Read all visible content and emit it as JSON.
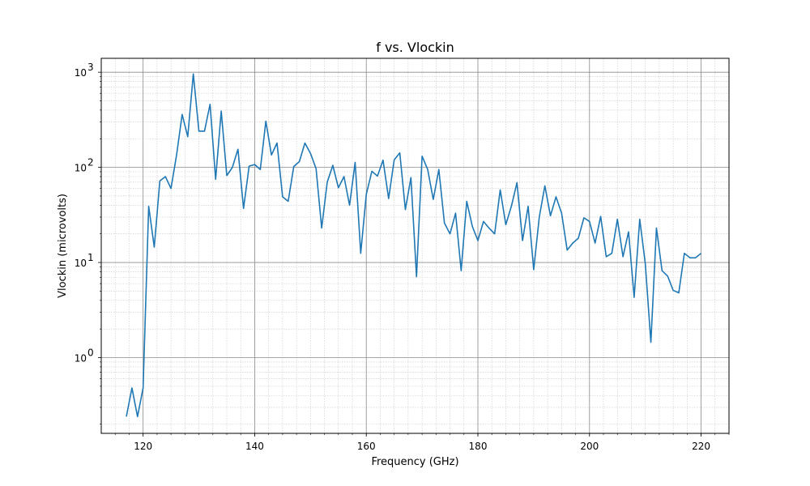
{
  "chart_data": {
    "type": "line",
    "title": "f vs. Vlockin",
    "xlabel": "Frequency (GHz)",
    "ylabel": "Vlockin (microvolts)",
    "yscale": "log",
    "xlim": [
      112.5,
      225
    ],
    "ylim": [
      0.16,
      1400
    ],
    "x_ticks": [
      120,
      140,
      160,
      180,
      200,
      220
    ],
    "x_tick_labels": [
      "120",
      "140",
      "160",
      "180",
      "200",
      "220"
    ],
    "y_ticks": [
      1,
      10,
      100,
      1000
    ],
    "y_tick_labels": [
      {
        "base": "10",
        "exp": "0"
      },
      {
        "base": "10",
        "exp": "1"
      },
      {
        "base": "10",
        "exp": "2"
      },
      {
        "base": "10",
        "exp": "3"
      }
    ],
    "grid": true,
    "legend": "none",
    "line_color": "#1f77b4",
    "series": [
      {
        "x": [
          117,
          118,
          119,
          120,
          121,
          122,
          123,
          124,
          125,
          126,
          127,
          128,
          129,
          130,
          131,
          132,
          133,
          134,
          135,
          136,
          137,
          138,
          139,
          140,
          141,
          142,
          143,
          144,
          145,
          146,
          147,
          148,
          149,
          150,
          151,
          152,
          153,
          154,
          155,
          156,
          157,
          158,
          159,
          160,
          161,
          162,
          163,
          164,
          165,
          166,
          167,
          168,
          169,
          170,
          171,
          172,
          173,
          174,
          175,
          176,
          177,
          178,
          179,
          180,
          181,
          182,
          183,
          184,
          185,
          186,
          187,
          188,
          189,
          190,
          191,
          192,
          193,
          194,
          195,
          196,
          197,
          198,
          199,
          200,
          201,
          202,
          203,
          204,
          205,
          206,
          207,
          208,
          209,
          210,
          211,
          212,
          213,
          214,
          215,
          216,
          217,
          218,
          219,
          220
        ],
        "y": [
          0.24,
          0.48,
          0.24,
          0.48,
          39,
          14.5,
          72,
          80,
          60,
          135,
          360,
          210,
          960,
          240,
          240,
          460,
          75,
          390,
          82,
          100,
          155,
          37,
          103,
          107,
          95,
          305,
          135,
          180,
          49,
          44,
          102,
          115,
          180,
          140,
          97,
          23,
          70,
          105,
          61,
          80,
          40,
          113,
          12.5,
          52,
          91,
          81,
          119,
          47,
          120,
          142,
          36,
          78,
          7.1,
          131,
          95,
          46,
          95,
          26,
          20,
          33,
          8.2,
          44,
          24,
          17,
          27,
          23,
          20,
          58,
          25,
          39,
          69,
          17,
          39,
          8.4,
          30,
          64,
          31,
          49,
          33,
          13.5,
          16,
          18,
          29.5,
          27,
          16,
          30.5,
          11.5,
          12.5,
          28.5,
          11.5,
          21,
          4.3,
          28.5,
          9.7,
          1.45,
          23,
          8.2,
          7.2,
          5.1,
          4.8,
          12.5,
          11.2,
          11.2,
          12.5
        ]
      }
    ]
  }
}
